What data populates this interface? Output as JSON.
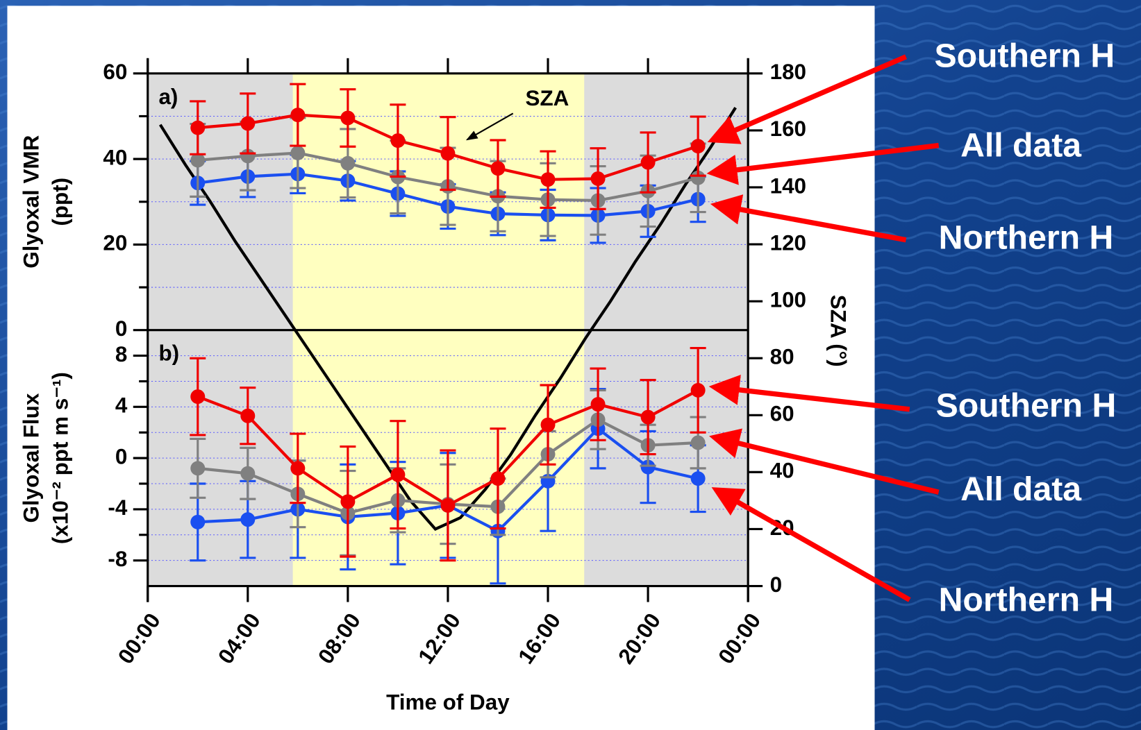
{
  "chart_data": [
    {
      "type": "line",
      "panel_label": "a)",
      "ylabel": [
        "Glyoxal VMR",
        "(ppt)"
      ],
      "xlim": [
        0,
        24
      ],
      "ylim": [
        0,
        60
      ],
      "yticks": [
        0,
        20,
        40,
        60
      ],
      "yminor": [
        10,
        30,
        50
      ],
      "grid": true,
      "daylight": [
        5.8,
        17.45
      ],
      "x": [
        2,
        4,
        6,
        8,
        10,
        12,
        14,
        16,
        18,
        20,
        22
      ],
      "series": [
        {
          "name": "Southern H",
          "color": "#f00000",
          "values": [
            47.3,
            48.3,
            50.3,
            49.6,
            44.3,
            41.3,
            37.8,
            35.2,
            35.4,
            39.2,
            43.0
          ],
          "errors": [
            6.2,
            7.0,
            7.2,
            6.7,
            8.4,
            8.5,
            6.6,
            6.6,
            7.1,
            7.0,
            6.9
          ]
        },
        {
          "name": "All data",
          "color": "#808080",
          "values": [
            39.7,
            40.7,
            41.4,
            39.0,
            35.8,
            33.6,
            31.3,
            30.5,
            30.3,
            32.5,
            35.6
          ],
          "errors": [
            8.5,
            8.0,
            8.2,
            8.0,
            8.5,
            9.0,
            8.2,
            8.5,
            8.0,
            8.3,
            8.0
          ]
        },
        {
          "name": "Northern H",
          "color": "#1a4ff0",
          "values": [
            34.4,
            35.9,
            36.5,
            34.9,
            31.9,
            28.9,
            27.2,
            26.9,
            26.8,
            27.8,
            30.6
          ],
          "errors": [
            5.1,
            4.8,
            4.5,
            4.6,
            5.2,
            5.2,
            5.0,
            5.9,
            6.4,
            6.0,
            5.3
          ]
        }
      ]
    },
    {
      "type": "line",
      "panel_label": "b)",
      "ylabel": [
        "Glyoxal Flux",
        "(x10⁻² ppt m s⁻¹)"
      ],
      "xlabel": "Time of Day",
      "xlim": [
        0,
        24
      ],
      "xticks": [
        {
          "value": 0,
          "label": "00:00"
        },
        {
          "value": 4,
          "label": "04:00"
        },
        {
          "value": 8,
          "label": "08:00"
        },
        {
          "value": 12,
          "label": "12:00"
        },
        {
          "value": 16,
          "label": "16:00"
        },
        {
          "value": 20,
          "label": "20:00"
        },
        {
          "value": 24,
          "label": "00:00"
        }
      ],
      "ylim": [
        -10,
        10
      ],
      "yticks": [
        -8,
        -4,
        0,
        4,
        8
      ],
      "yminor": [
        -6,
        -2,
        2,
        6
      ],
      "grid": true,
      "daylight": [
        5.8,
        17.45
      ],
      "x": [
        2,
        4,
        6,
        8,
        10,
        12,
        14,
        16,
        18,
        20,
        22
      ],
      "series": [
        {
          "name": "Southern H",
          "color": "#f00000",
          "values": [
            4.8,
            3.3,
            -0.8,
            -3.4,
            -1.3,
            -3.7,
            -1.6,
            2.6,
            4.2,
            3.2,
            5.3
          ],
          "errors": [
            3.0,
            2.2,
            2.7,
            4.3,
            4.2,
            4.3,
            3.9,
            3.1,
            2.8,
            2.9,
            3.3
          ]
        },
        {
          "name": "All data",
          "color": "#808080",
          "values": [
            -0.8,
            -1.2,
            -2.8,
            -4.3,
            -3.3,
            -3.6,
            -3.8,
            0.3,
            3.0,
            1.0,
            1.2
          ],
          "errors": [
            2.3,
            2.0,
            2.6,
            3.3,
            2.5,
            3.1,
            2.2,
            1.8,
            2.3,
            1.6,
            2.0
          ]
        },
        {
          "name": "Northern H",
          "color": "#1a4ff0",
          "values": [
            -5.0,
            -4.8,
            -4.0,
            -4.6,
            -4.3,
            -3.7,
            -5.7,
            -1.8,
            2.3,
            -0.7,
            -1.6
          ],
          "errors": [
            3.0,
            3.0,
            3.8,
            4.1,
            4.0,
            4.1,
            4.1,
            3.9,
            3.1,
            2.8,
            2.6
          ]
        }
      ]
    },
    {
      "type": "line",
      "y2label": "SZA (°)",
      "xlim": [
        0,
        24
      ],
      "y2lim": [
        0,
        180
      ],
      "y2ticks": [
        0,
        20,
        40,
        60,
        80,
        100,
        120,
        140,
        160,
        180
      ],
      "x": [
        0.5,
        1.5,
        2.5,
        3.5,
        4.5,
        5.5,
        6.5,
        7.5,
        8.5,
        9.5,
        10.5,
        11.5,
        12.5,
        13.5,
        14.5,
        15.5,
        16.5,
        17.5,
        18.5,
        19.5,
        20.5,
        21.5,
        22.5,
        23.5
      ],
      "series": [
        {
          "name": "SZA",
          "color": "#000000",
          "axis": "y2",
          "values": [
            162,
            148,
            135,
            121,
            108,
            95,
            82,
            69,
            56,
            43,
            30,
            20,
            24,
            34,
            46,
            60,
            73,
            87,
            100,
            114,
            127,
            141,
            154,
            168
          ]
        }
      ]
    }
  ]
}
